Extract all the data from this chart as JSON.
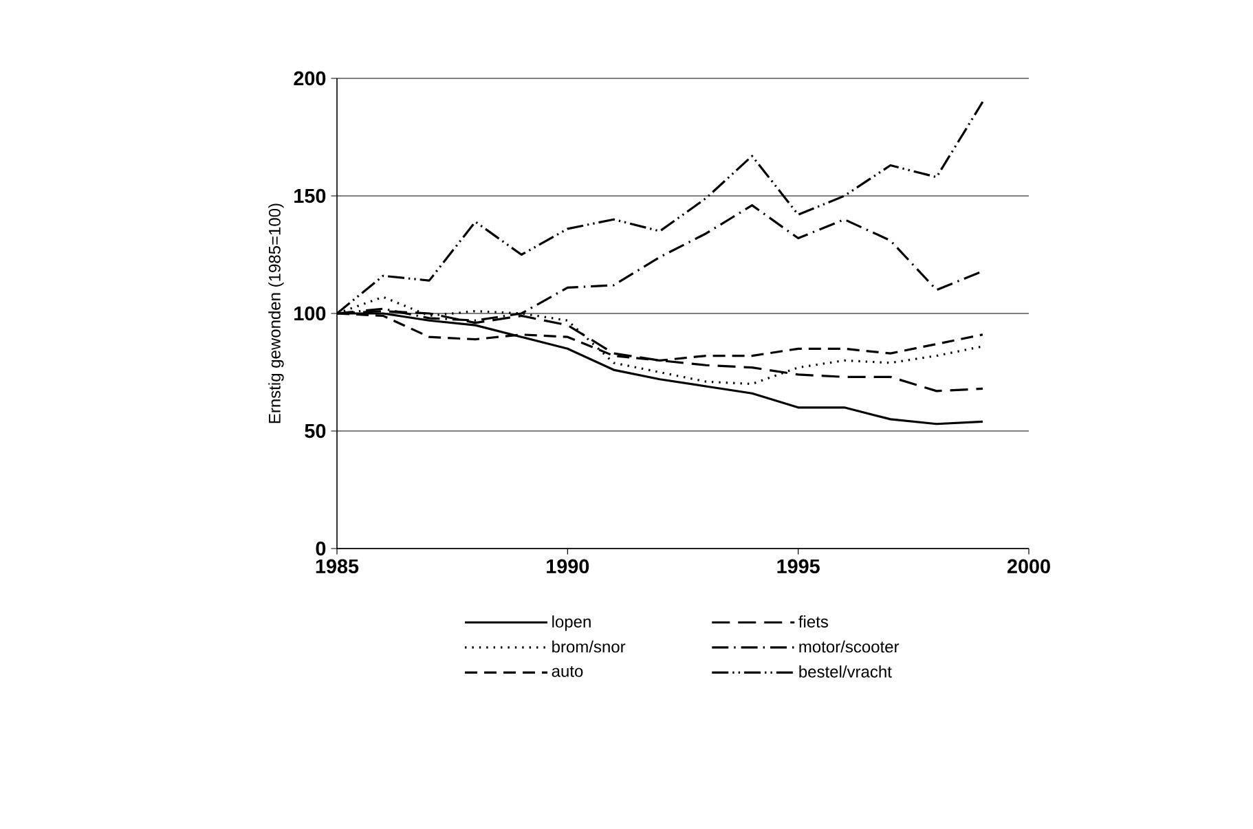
{
  "chart_data": {
    "type": "line",
    "ylabel": "Ernstig gewonden (1985=100)",
    "x": [
      1985,
      1986,
      1987,
      1988,
      1989,
      1990,
      1991,
      1992,
      1993,
      1994,
      1995,
      1996,
      1997,
      1998,
      1999
    ],
    "series": [
      {
        "name": "lopen",
        "color": "#000000",
        "line_style": "solid",
        "values": [
          100,
          100,
          97,
          95,
          90,
          85,
          76,
          72,
          69,
          66,
          60,
          60,
          55,
          53,
          54
        ]
      },
      {
        "name": "brom/snor",
        "color": "#000000",
        "line_style": "dotted",
        "values": [
          100,
          107,
          99,
          101,
          100,
          97,
          79,
          75,
          71,
          70,
          77,
          80,
          79,
          82,
          86
        ]
      },
      {
        "name": "auto",
        "color": "#000000",
        "line_style": "dashed",
        "values": [
          100,
          99,
          90,
          89,
          91,
          90,
          82,
          80,
          82,
          82,
          85,
          85,
          83,
          87,
          91
        ]
      },
      {
        "name": "fiets",
        "color": "#000000",
        "line_style": "long dashed",
        "values": [
          100,
          101,
          100,
          96,
          99,
          95,
          83,
          80,
          78,
          77,
          74,
          73,
          73,
          67,
          68
        ]
      },
      {
        "name": "motor/scooter",
        "color": "#000000",
        "line_style": "dashdot",
        "values": [
          100,
          102,
          98,
          97,
          100,
          111,
          112,
          124,
          134,
          146,
          132,
          140,
          131,
          110,
          118
        ]
      },
      {
        "name": "bestel/vracht",
        "color": "#000000",
        "line_style": "dashdotdot",
        "values": [
          100,
          116,
          114,
          139,
          125,
          136,
          140,
          135,
          149,
          167,
          142,
          150,
          163,
          158,
          190
        ]
      }
    ],
    "xlim": [
      1985,
      2000
    ],
    "xticks": [
      1985,
      1990,
      1995,
      2000
    ],
    "ylim": [
      0,
      200
    ],
    "yticks": [
      0,
      50,
      100,
      150,
      200
    ],
    "grid": "y",
    "legend": "bottom"
  }
}
